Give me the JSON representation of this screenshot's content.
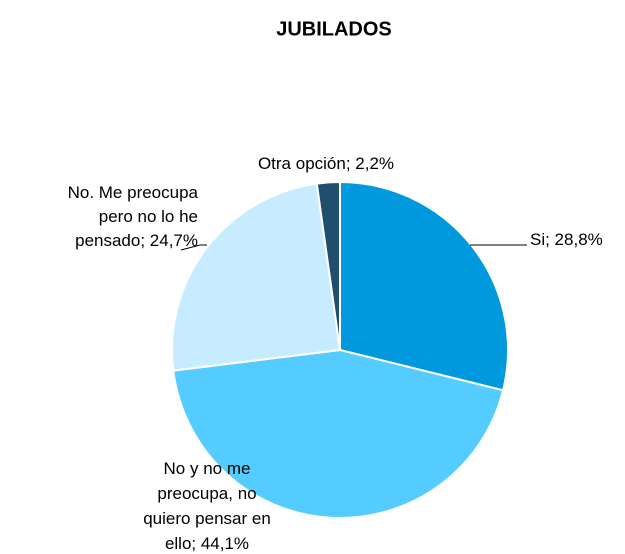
{
  "chart_data": {
    "type": "pie",
    "title": "JUBILADOS",
    "values": [
      28.8,
      44.1,
      24.7,
      2.2
    ],
    "value_labels": [
      "Si; 28,8%",
      "No y no me\npreocupa, no\nquiero pensar en\nello; 44,1%",
      "No. Me preocupa\npero no lo he\npensado; 24,7%",
      "Otra opción; 2,2%"
    ],
    "colors": [
      "#0099dd",
      "#55ccff",
      "#c8ecff",
      "#1f4e6e"
    ]
  }
}
